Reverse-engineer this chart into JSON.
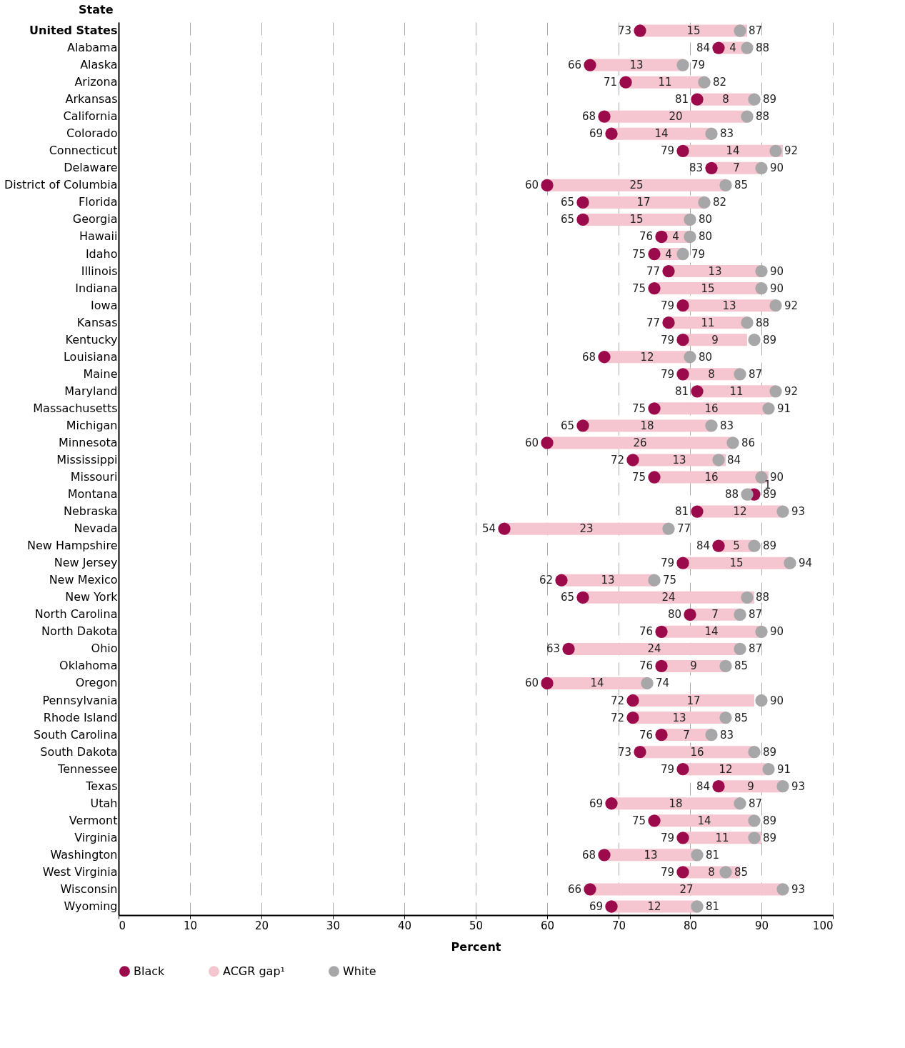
{
  "chart_data": {
    "type": "bar",
    "orientation": "horizontal",
    "ylabel": "State",
    "xlabel": "Percent",
    "categories": [
      "United States",
      "Alabama",
      "Alaska",
      "Arizona",
      "Arkansas",
      "California",
      "Colorado",
      "Connecticut",
      "Delaware",
      "District of Columbia",
      "Florida",
      "Georgia",
      "Hawaii",
      "Idaho",
      "Illinois",
      "Indiana",
      "Iowa",
      "Kansas",
      "Kentucky",
      "Louisiana",
      "Maine",
      "Maryland",
      "Massachusetts",
      "Michigan",
      "Minnesota",
      "Mississippi",
      "Missouri",
      "Montana",
      "Nebraska",
      "Nevada",
      "New Hampshire",
      "New Jersey",
      "New Mexico",
      "New York",
      "North Carolina",
      "North Dakota",
      "Ohio",
      "Oklahoma",
      "Oregon",
      "Pennsylvania",
      "Rhode Island",
      "South Carolina",
      "South Dakota",
      "Tennessee",
      "Texas",
      "Utah",
      "Vermont",
      "Virginia",
      "Washington",
      "West Virginia",
      "Wisconsin",
      "Wyoming"
    ],
    "series": [
      {
        "name": "Black",
        "type": "scatter",
        "color": "#9b0b4b",
        "values": [
          73,
          84,
          66,
          71,
          81,
          68,
          69,
          79,
          83,
          60,
          65,
          65,
          76,
          75,
          77,
          75,
          79,
          77,
          79,
          68,
          79,
          81,
          75,
          65,
          60,
          72,
          75,
          89,
          81,
          54,
          84,
          79,
          62,
          65,
          80,
          76,
          63,
          76,
          60,
          72,
          72,
          76,
          73,
          79,
          84,
          69,
          75,
          79,
          68,
          79,
          66,
          69
        ]
      },
      {
        "name": "ACGR gap¹",
        "color": "#f5c6d0",
        "base": [
          73,
          84,
          66,
          71,
          81,
          68,
          69,
          79,
          83,
          60,
          65,
          65,
          76,
          75,
          77,
          75,
          79,
          77,
          79,
          68,
          79,
          81,
          75,
          65,
          60,
          72,
          75,
          88,
          81,
          54,
          84,
          79,
          62,
          65,
          80,
          76,
          63,
          76,
          60,
          72,
          72,
          76,
          73,
          79,
          84,
          69,
          75,
          79,
          68,
          79,
          66,
          69
        ],
        "values": [
          15,
          4,
          13,
          11,
          8,
          20,
          14,
          14,
          7,
          25,
          17,
          15,
          4,
          4,
          13,
          15,
          13,
          11,
          9,
          12,
          8,
          11,
          16,
          18,
          26,
          13,
          16,
          1,
          12,
          23,
          5,
          15,
          13,
          24,
          7,
          14,
          24,
          9,
          14,
          17,
          13,
          7,
          16,
          12,
          9,
          18,
          14,
          11,
          13,
          8,
          27,
          12
        ]
      },
      {
        "name": "White",
        "type": "scatter",
        "color": "#a7a7a9",
        "values": [
          87,
          88,
          79,
          82,
          89,
          88,
          83,
          92,
          90,
          85,
          82,
          80,
          80,
          79,
          90,
          90,
          92,
          88,
          89,
          80,
          87,
          92,
          91,
          83,
          86,
          84,
          90,
          88,
          93,
          77,
          89,
          94,
          75,
          88,
          87,
          90,
          87,
          85,
          74,
          90,
          85,
          83,
          89,
          91,
          93,
          87,
          89,
          89,
          81,
          85,
          93,
          81
        ]
      }
    ],
    "xlim": [
      0,
      100
    ],
    "xticks": [
      0,
      10,
      20,
      30,
      40,
      50,
      60,
      70,
      80,
      90,
      100
    ],
    "grid": "x",
    "legend": "bottom",
    "data_labels": true,
    "marker": "circle"
  }
}
